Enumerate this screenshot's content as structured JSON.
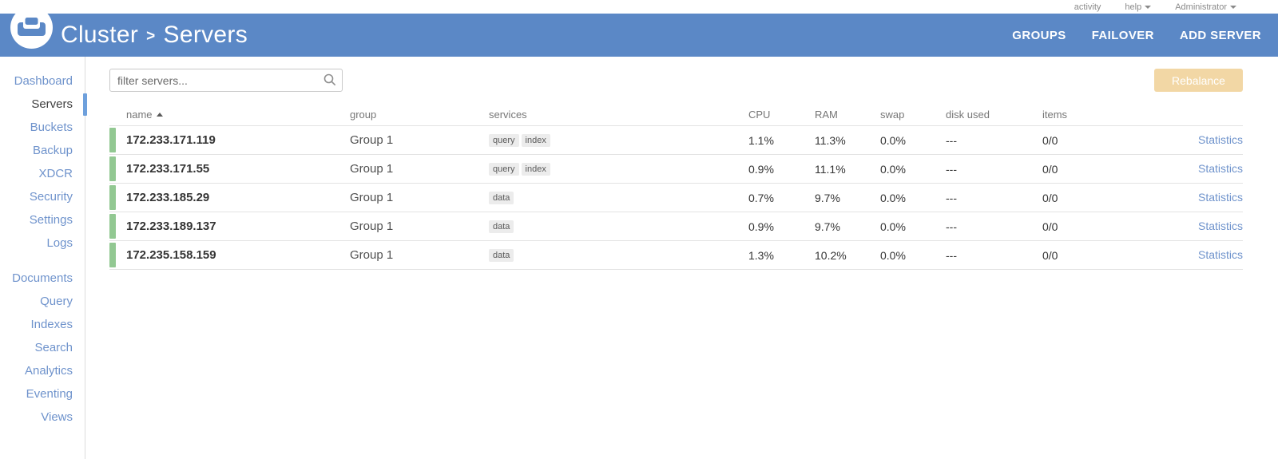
{
  "colors": {
    "header_blue": "#5b88c6",
    "link_blue": "#6f93cc",
    "active_marker_blue": "#6ea0dc",
    "row_bar_green": "#92c892",
    "rebalance_bg": "#f2d7a5",
    "badge_bg": "#ececec"
  },
  "topbar": {
    "activity_label": "activity",
    "help_label": "help",
    "admin_label": "Administrator"
  },
  "header": {
    "breadcrumb_parent": "Cluster",
    "breadcrumb_separator": ">",
    "breadcrumb_current": "Servers",
    "actions": {
      "groups": "GROUPS",
      "failover": "FAILOVER",
      "add_server": "ADD SERVER"
    }
  },
  "sidebar": {
    "active_item": "Servers",
    "primary_items": [
      {
        "label": "Dashboard",
        "active": false
      },
      {
        "label": "Servers",
        "active": true
      },
      {
        "label": "Buckets",
        "active": false
      },
      {
        "label": "Backup",
        "active": false
      },
      {
        "label": "XDCR",
        "active": false
      },
      {
        "label": "Security",
        "active": false
      },
      {
        "label": "Settings",
        "active": false
      },
      {
        "label": "Logs",
        "active": false
      }
    ],
    "secondary_items": [
      {
        "label": "Documents",
        "active": false
      },
      {
        "label": "Query",
        "active": false
      },
      {
        "label": "Indexes",
        "active": false
      },
      {
        "label": "Search",
        "active": false
      },
      {
        "label": "Analytics",
        "active": false
      },
      {
        "label": "Eventing",
        "active": false
      },
      {
        "label": "Views",
        "active": false
      }
    ]
  },
  "main": {
    "filter_placeholder": "filter servers...",
    "rebalance_label": "Rebalance",
    "table": {
      "columns": {
        "name": "name",
        "group": "group",
        "services": "services",
        "cpu": "CPU",
        "ram": "RAM",
        "swap": "swap",
        "disk_used": "disk used",
        "items": "items"
      },
      "sort": {
        "column": "name",
        "direction": "asc"
      },
      "rows": [
        {
          "name": "172.233.171.119",
          "group": "Group 1",
          "services": [
            "query",
            "index"
          ],
          "cpu": "1.1%",
          "ram": "11.3%",
          "swap": "0.0%",
          "disk_used": "---",
          "items": "0/0",
          "statistics_label": "Statistics"
        },
        {
          "name": "172.233.171.55",
          "group": "Group 1",
          "services": [
            "query",
            "index"
          ],
          "cpu": "0.9%",
          "ram": "11.1%",
          "swap": "0.0%",
          "disk_used": "---",
          "items": "0/0",
          "statistics_label": "Statistics"
        },
        {
          "name": "172.233.185.29",
          "group": "Group 1",
          "services": [
            "data"
          ],
          "cpu": "0.7%",
          "ram": "9.7%",
          "swap": "0.0%",
          "disk_used": "---",
          "items": "0/0",
          "statistics_label": "Statistics"
        },
        {
          "name": "172.233.189.137",
          "group": "Group 1",
          "services": [
            "data"
          ],
          "cpu": "0.9%",
          "ram": "9.7%",
          "swap": "0.0%",
          "disk_used": "---",
          "items": "0/0",
          "statistics_label": "Statistics"
        },
        {
          "name": "172.235.158.159",
          "group": "Group 1",
          "services": [
            "data"
          ],
          "cpu": "1.3%",
          "ram": "10.2%",
          "swap": "0.0%",
          "disk_used": "---",
          "items": "0/0",
          "statistics_label": "Statistics"
        }
      ]
    }
  }
}
